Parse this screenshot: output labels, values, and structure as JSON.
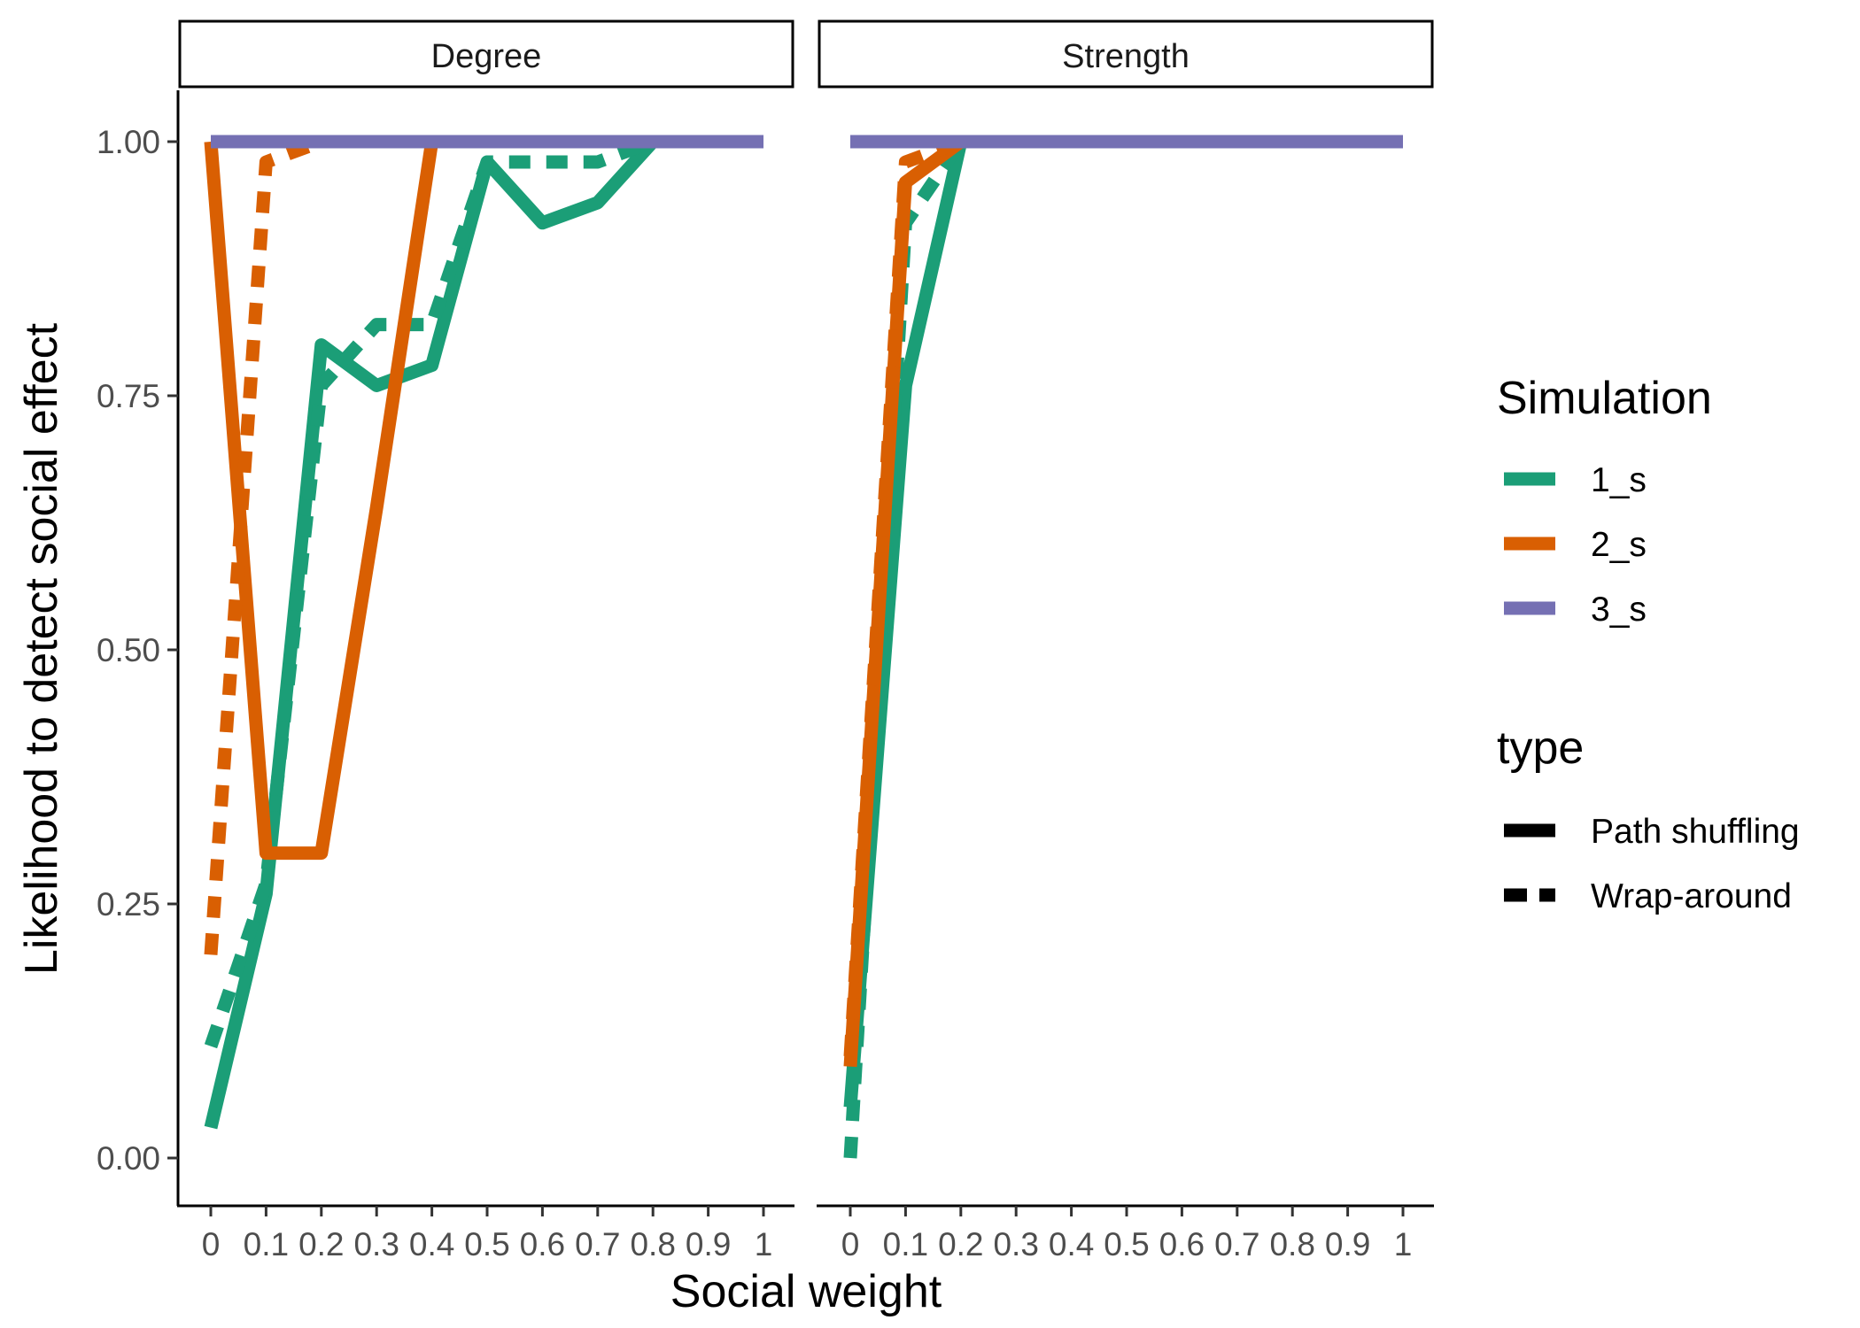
{
  "chart_data": {
    "type": "line",
    "facets": [
      "Degree",
      "Strength"
    ],
    "x": [
      0,
      0.1,
      0.2,
      0.3,
      0.4,
      0.5,
      0.6,
      0.7,
      0.8,
      0.9,
      1
    ],
    "x_tick_labels": [
      "0",
      "0.1",
      "0.2",
      "0.3",
      "0.4",
      "0.5",
      "0.6",
      "0.7",
      "0.8",
      "0.9",
      "1"
    ],
    "xlabel": "Social weight",
    "ylabel": "Likelihood to detect social effect",
    "ylim": [
      0,
      1
    ],
    "y_ticks": [
      0,
      0.25,
      0.5,
      0.75,
      1
    ],
    "y_tick_labels": [
      "0.00",
      "0.25",
      "0.50",
      "0.75",
      "1.00"
    ],
    "grid": false,
    "legend_placement": "right",
    "colors": {
      "1_s": "#1b9e77",
      "2_s": "#d95f02",
      "3_s": "#7570b3"
    },
    "legend": {
      "color_title": "Simulation",
      "color_entries": [
        "1_s",
        "2_s",
        "3_s"
      ],
      "linetype_title": "type",
      "linetype_entries": [
        "Path shuffling",
        "Wrap-around"
      ]
    },
    "series": [
      {
        "facet": "Degree",
        "simulation": "1_s",
        "type": "Path shuffling",
        "values": [
          0.03,
          0.26,
          0.8,
          0.76,
          0.78,
          0.98,
          0.92,
          0.94,
          1.0,
          1.0,
          1.0
        ]
      },
      {
        "facet": "Degree",
        "simulation": "1_s",
        "type": "Wrap-around",
        "values": [
          0.11,
          0.27,
          0.76,
          0.82,
          0.82,
          0.98,
          0.98,
          0.98,
          1.0,
          1.0,
          1.0
        ]
      },
      {
        "facet": "Degree",
        "simulation": "2_s",
        "type": "Path shuffling",
        "values": [
          1.0,
          0.3,
          0.3,
          0.64,
          1.0,
          1.0,
          1.0,
          1.0,
          1.0,
          1.0,
          1.0
        ]
      },
      {
        "facet": "Degree",
        "simulation": "2_s",
        "type": "Wrap-around",
        "values": [
          0.2,
          0.98,
          1.0,
          1.0,
          1.0,
          1.0,
          1.0,
          1.0,
          1.0,
          1.0,
          1.0
        ]
      },
      {
        "facet": "Degree",
        "simulation": "3_s",
        "type": "Path shuffling",
        "values": [
          1,
          1,
          1,
          1,
          1,
          1,
          1,
          1,
          1,
          1,
          1
        ]
      },
      {
        "facet": "Degree",
        "simulation": "3_s",
        "type": "Wrap-around",
        "values": [
          1,
          1,
          1,
          1,
          1,
          1,
          1,
          1,
          1,
          1,
          1
        ]
      },
      {
        "facet": "Strength",
        "simulation": "1_s",
        "type": "Path shuffling",
        "values": [
          0.05,
          0.76,
          1.0,
          1.0,
          1.0,
          1.0,
          1.0,
          1.0,
          1.0,
          1.0,
          1.0
        ]
      },
      {
        "facet": "Strength",
        "simulation": "1_s",
        "type": "Wrap-around",
        "values": [
          0.0,
          0.92,
          1.0,
          1.0,
          1.0,
          1.0,
          1.0,
          1.0,
          1.0,
          1.0,
          1.0
        ]
      },
      {
        "facet": "Strength",
        "simulation": "2_s",
        "type": "Path shuffling",
        "values": [
          0.09,
          0.96,
          1.0,
          1.0,
          1.0,
          1.0,
          1.0,
          1.0,
          1.0,
          1.0,
          1.0
        ]
      },
      {
        "facet": "Strength",
        "simulation": "2_s",
        "type": "Wrap-around",
        "values": [
          0.1,
          0.98,
          1.0,
          1.0,
          1.0,
          1.0,
          1.0,
          1.0,
          1.0,
          1.0,
          1.0
        ]
      },
      {
        "facet": "Strength",
        "simulation": "3_s",
        "type": "Path shuffling",
        "values": [
          1,
          1,
          1,
          1,
          1,
          1,
          1,
          1,
          1,
          1,
          1
        ]
      },
      {
        "facet": "Strength",
        "simulation": "3_s",
        "type": "Wrap-around",
        "values": [
          1,
          1,
          1,
          1,
          1,
          1,
          1,
          1,
          1,
          1,
          1
        ]
      }
    ]
  }
}
